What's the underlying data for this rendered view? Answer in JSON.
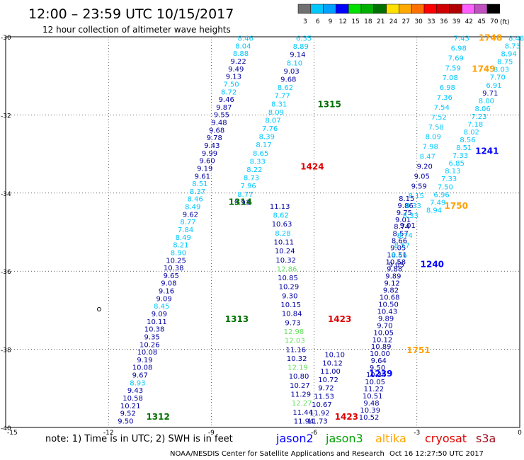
{
  "header": {
    "title": "12:00 – 23:59 UTC 10/15/2017",
    "subtitle": "12 hour collection of altimeter wave heights"
  },
  "color_scale": {
    "labels": [
      "3",
      "6",
      "9",
      "12",
      "15",
      "18",
      "21",
      "24",
      "27",
      "30",
      "33",
      "36",
      "39",
      "42",
      "45",
      "70"
    ],
    "unit": "(ft)",
    "colors": [
      "#707070",
      "#00c8ff",
      "#00a0ff",
      "#0000ff",
      "#00e000",
      "#00b000",
      "#007000",
      "#ffe000",
      "#ffa800",
      "#ff7000",
      "#ff0000",
      "#d00000",
      "#b00000",
      "#ff60ff",
      "#c050c0",
      "#000000"
    ]
  },
  "footer": {
    "note": "note:  1) Time is in UTC;  2) SWH is in feet",
    "credit": "NOAA/NESDIS Center for Satellite Applications and Research",
    "stamp": "Oct 16 12:27:50 UTC 2017"
  },
  "legend": [
    {
      "name": "jason2",
      "color": "#0000ff"
    },
    {
      "name": "jason3",
      "color": "#00a000"
    },
    {
      "name": "altika",
      "color": "#ffa500"
    },
    {
      "name": "cryosat",
      "color": "#e00000"
    },
    {
      "name": "s3a",
      "color": "#a01020"
    }
  ],
  "chart_data": {
    "type": "scatter",
    "xlim": [
      -15,
      0
    ],
    "ylim": [
      -40,
      -30
    ],
    "x_ticks": [
      "-15",
      "-12",
      "-9",
      "-6",
      "-3",
      "0"
    ],
    "y_ticks": [
      "-30",
      "-32",
      "-34",
      "-36",
      "-38",
      "-40"
    ],
    "grid": true,
    "series_colors": {
      "jason2": "#0000a0",
      "jason3_swh": "#00c8ff",
      "jason3_hi": "#66e060",
      "altika": "#ffa000",
      "cryosat": "#e00000"
    },
    "time_labels": [
      {
        "text": "1315",
        "x": -5.9,
        "y": -31.8,
        "color": "#007000"
      },
      {
        "text": "1424",
        "x": -6.4,
        "y": -33.4,
        "color": "#e00000"
      },
      {
        "text": "1314",
        "x": -8.5,
        "y": -34.3,
        "color": "#007000"
      },
      {
        "text": "1313",
        "x": -8.6,
        "y": -37.3,
        "color": "#007000"
      },
      {
        "text": "1423",
        "x": -5.6,
        "y": -37.3,
        "color": "#e00000"
      },
      {
        "text": "1312",
        "x": -10.9,
        "y": -39.8,
        "color": "#007000"
      },
      {
        "text": "1423",
        "x": -5.4,
        "y": -39.8,
        "color": "#e00000"
      },
      {
        "text": "1239",
        "x": -4.4,
        "y": -38.7,
        "color": "#0000ff"
      },
      {
        "text": "1240",
        "x": -2.9,
        "y": -35.9,
        "color": "#0000ff"
      },
      {
        "text": "1241",
        "x": -1.3,
        "y": -33.0,
        "color": "#0000ff"
      },
      {
        "text": "1750",
        "x": -2.2,
        "y": -34.4,
        "color": "#ffa000"
      },
      {
        "text": "1751",
        "x": -3.3,
        "y": -38.1,
        "color": "#ffa000"
      },
      {
        "text": "1749",
        "x": -1.4,
        "y": -30.9,
        "color": "#ffa000"
      },
      {
        "text": "1748",
        "x": -1.2,
        "y": -30.1,
        "color": "#ffa000"
      }
    ],
    "tracks": [
      {
        "name": "jason3_left",
        "color": "#00c8ff",
        "start": [
          -8.0,
          -30.1
        ],
        "end": [
          -11.5,
          -39.9
        ],
        "values": [
          "8.46",
          "8.04",
          "8.88",
          "9.22",
          "9.49",
          "9.13",
          "7.50",
          "8.72",
          "9.46",
          "9.87",
          "9.55",
          "9.48",
          "9.68",
          "9.78",
          "9.43",
          "9.99",
          "9.60",
          "9.19",
          "9.61",
          "8.51",
          "8.37",
          "8.46",
          "8.49",
          "9.62",
          "8.77",
          "7.84",
          "8.49",
          "8.21",
          "8.90",
          "10.25",
          "10.38",
          "9.65",
          "9.08",
          "9.16",
          "9.09",
          "8.45",
          "9.09",
          "10.11",
          "10.38",
          "9.35",
          "10.26",
          "10.08",
          "9.19",
          "10.08",
          "9.67",
          "8.93",
          "9.43",
          "10.58",
          "10.21",
          "9.52",
          "9.50"
        ]
      },
      {
        "name": "jason3_mid",
        "color": "#00c8ff",
        "start": [
          -6.3,
          -30.1
        ],
        "end": [
          -8.1,
          -34.3
        ],
        "values": [
          "6.35",
          "8.89",
          "9.14",
          "8.10",
          "9.03",
          "9.68",
          "8.62",
          "7.77",
          "8.31",
          "8.09",
          "8.07",
          "7.76",
          "8.39",
          "8.17",
          "8.65",
          "8.33",
          "8.22",
          "8.73",
          "7.96",
          "8.77",
          "9.93"
        ]
      },
      {
        "name": "jason3_lower",
        "color": "#00c8ff",
        "start": [
          -7.0,
          -34.4
        ],
        "end": [
          -6.3,
          -39.9
        ],
        "values": [
          "11.13",
          "8.62",
          "10.63",
          "8.28",
          "10.11",
          "10.24",
          "10.32",
          "12.86",
          "10.85",
          "10.29",
          "9.30",
          "10.15",
          "10.84",
          "9.73",
          "12.98",
          "12.03",
          "11.16",
          "10.32",
          "12.19",
          "10.80",
          "10.27",
          "11.29",
          "12.27",
          "11.44",
          "11.94"
        ]
      },
      {
        "name": "jason2_mid",
        "color": "#0000a0",
        "start": [
          -5.4,
          -38.2
        ],
        "end": [
          -5.9,
          -39.9
        ],
        "values": [
          "10.10",
          "10.12",
          "11.00",
          "10.72",
          "9.72",
          "11.53",
          "10.67",
          "11.92",
          "11.73"
        ]
      },
      {
        "name": "jason2_right",
        "color": "#0000a0",
        "start": [
          -3.3,
          -34.2
        ],
        "end": [
          -4.4,
          -39.8
        ],
        "values": [
          "8.15",
          "9.86",
          "9.75",
          "9.01",
          "8.74",
          "8.57",
          "8.66",
          "9.05",
          "10.51",
          "10.58",
          "9.88",
          "9.89",
          "9.12",
          "9.82",
          "10.68",
          "10.50",
          "10.43",
          "9.89",
          "9.70",
          "10.05",
          "10.12",
          "10.89",
          "10.00",
          "9.64",
          "9.50",
          "10.34",
          "10.05",
          "11.22",
          "10.51",
          "9.48",
          "10.39",
          "10.52"
        ]
      },
      {
        "name": "jason3_right",
        "color": "#00c8ff",
        "start": [
          -1.7,
          -30.1
        ],
        "end": [
          -3.6,
          -35.9
        ],
        "values": [
          "7.43",
          "6.98",
          "7.69",
          "7.59",
          "7.08",
          "6.98",
          "7.36",
          "7.54",
          "7.52",
          "7.58",
          "8.09",
          "7.98",
          "8.47",
          "9.20",
          "9.05",
          "9.59",
          "8.15",
          "8.33",
          "8.33",
          "9.01",
          "8.74",
          "8.57",
          "8.66",
          "9.05"
        ]
      },
      {
        "name": "jason3_far",
        "color": "#00c8ff",
        "start": [
          -0.1,
          -30.1
        ],
        "end": [
          -2.5,
          -34.5
        ],
        "values": [
          "8.48",
          "8.73",
          "8.94",
          "8.75",
          "8.03",
          "7.70",
          "6.91",
          "9.71",
          "8.00",
          "8.06",
          "7.23",
          "7.18",
          "8.02",
          "8.56",
          "8.51",
          "7.33",
          "6.85",
          "8.13",
          "7.33",
          "7.50",
          "6.96",
          "7.49",
          "8.94"
        ]
      }
    ]
  }
}
